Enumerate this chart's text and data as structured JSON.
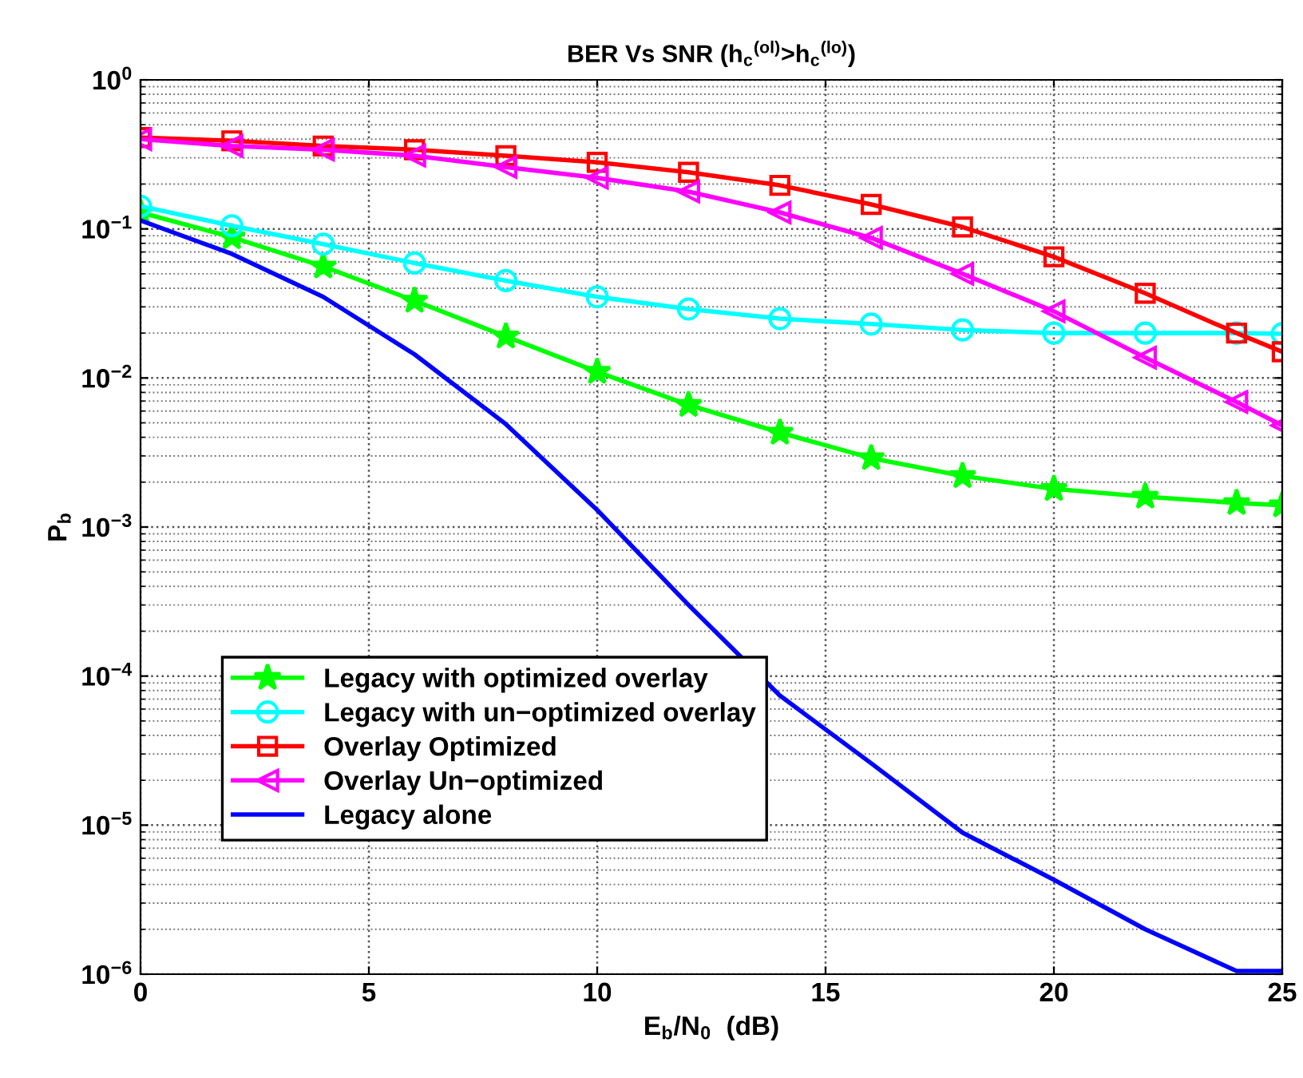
{
  "chart_data": {
    "type": "line",
    "title": "BER Vs SNR (h$_{c}$$^{(ol)}$>h$_{c}$$^{(lo)}$)",
    "xlabel": "E$_{b}$/N$_{0}$  (dB)",
    "ylabel": "P$_{b}$",
    "x": [
      0,
      2,
      4,
      6,
      8,
      10,
      12,
      14,
      16,
      18,
      20,
      22,
      24,
      25
    ],
    "series": [
      {
        "name": "Legacy with optimized overlay",
        "color": "#00ff00",
        "marker": "star",
        "values": [
          0.129,
          0.088,
          0.056,
          0.033,
          0.019,
          0.011,
          0.0066,
          0.0043,
          0.0029,
          0.0022,
          0.0018,
          0.0016,
          0.00145,
          0.0014
        ]
      },
      {
        "name": "Legacy with un−optimized overlay",
        "color": "#00ffff",
        "marker": "circle",
        "values": [
          0.142,
          0.105,
          0.079,
          0.059,
          0.045,
          0.035,
          0.029,
          0.025,
          0.023,
          0.021,
          0.02,
          0.02,
          0.02,
          0.0198
        ]
      },
      {
        "name": "Overlay Optimized",
        "color": "#ff0000",
        "marker": "square",
        "values": [
          0.41,
          0.39,
          0.36,
          0.34,
          0.31,
          0.28,
          0.24,
          0.196,
          0.146,
          0.103,
          0.065,
          0.037,
          0.02,
          0.015
        ]
      },
      {
        "name": "Overlay Un−optimized",
        "color": "#ff00ff",
        "marker": "triangle",
        "values": [
          0.4,
          0.36,
          0.34,
          0.31,
          0.26,
          0.22,
          0.178,
          0.129,
          0.087,
          0.05,
          0.028,
          0.0137,
          0.0069,
          0.0048
        ]
      },
      {
        "name": "Legacy alone",
        "color": "#0000ff",
        "marker": "none",
        "values": [
          0.114,
          0.068,
          0.035,
          0.0144,
          0.0049,
          0.0013,
          0.0003,
          7.4e-05,
          2.6e-05,
          8.9e-06,
          4.3e-06,
          2e-06,
          1.05e-06,
          1.05e-06
        ]
      }
    ],
    "log": "y",
    "xlim": [
      0,
      25
    ],
    "ylim": [
      1e-06,
      1
    ],
    "xticks": [
      0,
      5,
      10,
      15,
      20,
      25
    ],
    "yticks": [
      {
        "value": 1e-06,
        "label": "10$^{−6}$"
      },
      {
        "value": 1e-05,
        "label": "10$^{−5}$"
      },
      {
        "value": 0.0001,
        "label": "10$^{−4}$"
      },
      {
        "value": 0.001,
        "label": "10$^{−3}$"
      },
      {
        "value": 0.01,
        "label": "10$^{−2}$"
      },
      {
        "value": 0.1,
        "label": "10$^{−1}$"
      },
      {
        "value": 1,
        "label": "10$^{0}$"
      }
    ],
    "grid": true,
    "legend": "bottom left",
    "line_style": "solid"
  }
}
